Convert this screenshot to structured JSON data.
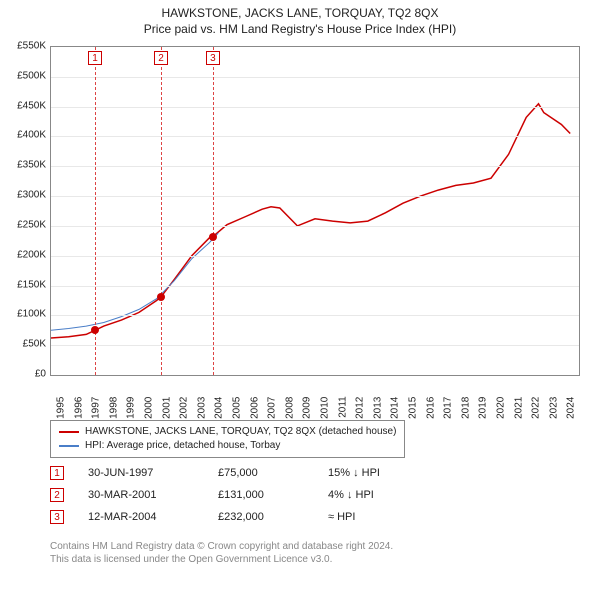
{
  "title": {
    "main": "HAWKSTONE, JACKS LANE, TORQUAY, TQ2 8QX",
    "sub": "Price paid vs. HM Land Registry's House Price Index (HPI)"
  },
  "chart": {
    "type": "line",
    "background_color": "#ffffff",
    "grid_color": "#e8e8e8",
    "border_color": "#888888",
    "x_axis": {
      "min": 1995,
      "max": 2025,
      "ticks": [
        1995,
        1996,
        1997,
        1998,
        1999,
        2000,
        2001,
        2002,
        2003,
        2004,
        2005,
        2006,
        2007,
        2008,
        2009,
        2010,
        2011,
        2012,
        2013,
        2014,
        2015,
        2016,
        2017,
        2018,
        2019,
        2020,
        2021,
        2022,
        2023,
        2024
      ],
      "label_fontsize": 10
    },
    "y_axis": {
      "min": 0,
      "max": 550000,
      "ticks": [
        0,
        50000,
        100000,
        150000,
        200000,
        250000,
        300000,
        350000,
        400000,
        450000,
        500000,
        550000
      ],
      "tick_labels": [
        "£0",
        "£50K",
        "£100K",
        "£150K",
        "£200K",
        "£250K",
        "£300K",
        "£350K",
        "£400K",
        "£450K",
        "£500K",
        "£550K"
      ],
      "label_fontsize": 10
    },
    "series": [
      {
        "name": "HAWKSTONE, JACKS LANE, TORQUAY, TQ2 8QX (detached house)",
        "color": "#cc0000",
        "line_width": 1.5,
        "points": [
          [
            1995,
            62000
          ],
          [
            1996,
            64000
          ],
          [
            1997,
            68000
          ],
          [
            1997.5,
            75000
          ],
          [
            1998,
            82000
          ],
          [
            1999,
            92000
          ],
          [
            2000,
            105000
          ],
          [
            2001,
            125000
          ],
          [
            2001.25,
            131000
          ],
          [
            2002,
            160000
          ],
          [
            2003,
            200000
          ],
          [
            2004,
            230000
          ],
          [
            2004.2,
            232000
          ],
          [
            2005,
            252000
          ],
          [
            2006,
            265000
          ],
          [
            2007,
            278000
          ],
          [
            2007.5,
            282000
          ],
          [
            2008,
            280000
          ],
          [
            2009,
            250000
          ],
          [
            2010,
            262000
          ],
          [
            2011,
            258000
          ],
          [
            2012,
            255000
          ],
          [
            2013,
            258000
          ],
          [
            2014,
            272000
          ],
          [
            2015,
            288000
          ],
          [
            2016,
            300000
          ],
          [
            2017,
            310000
          ],
          [
            2018,
            318000
          ],
          [
            2019,
            322000
          ],
          [
            2020,
            330000
          ],
          [
            2021,
            370000
          ],
          [
            2022,
            432000
          ],
          [
            2022.7,
            455000
          ],
          [
            2023,
            440000
          ],
          [
            2024,
            420000
          ],
          [
            2024.5,
            405000
          ]
        ]
      },
      {
        "name": "HPI: Average price, detached house, Torbay",
        "color": "#4a7ec8",
        "line_width": 1,
        "points": [
          [
            1995,
            75000
          ],
          [
            1996,
            78000
          ],
          [
            1997,
            82000
          ],
          [
            1998,
            88000
          ],
          [
            1999,
            98000
          ],
          [
            2000,
            110000
          ],
          [
            2001,
            128000
          ],
          [
            2002,
            158000
          ],
          [
            2003,
            195000
          ],
          [
            2004,
            222000
          ],
          [
            2004.5,
            238000
          ]
        ]
      }
    ],
    "events": [
      {
        "num": "1",
        "year": 1997.5,
        "price": 75000
      },
      {
        "num": "2",
        "year": 2001.25,
        "price": 131000
      },
      {
        "num": "3",
        "year": 2004.2,
        "price": 232000
      }
    ],
    "event_line_color": "#d44",
    "event_box_border": "#cc0000"
  },
  "legend": {
    "items": [
      {
        "color": "#cc0000",
        "label": "HAWKSTONE, JACKS LANE, TORQUAY, TQ2 8QX (detached house)"
      },
      {
        "color": "#4a7ec8",
        "label": "HPI: Average price, detached house, Torbay"
      }
    ]
  },
  "event_table": [
    {
      "num": "1",
      "date": "30-JUN-1997",
      "price": "£75,000",
      "delta": "15% ↓ HPI"
    },
    {
      "num": "2",
      "date": "30-MAR-2001",
      "price": "£131,000",
      "delta": "4% ↓ HPI"
    },
    {
      "num": "3",
      "date": "12-MAR-2004",
      "price": "£232,000",
      "delta": "≈ HPI"
    }
  ],
  "footer": {
    "line1": "Contains HM Land Registry data © Crown copyright and database right 2024.",
    "line2": "This data is licensed under the Open Government Licence v3.0."
  }
}
